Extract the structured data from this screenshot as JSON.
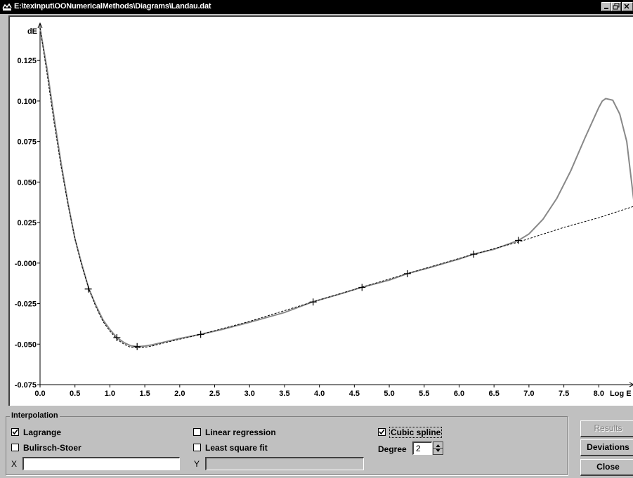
{
  "window": {
    "title": "E:\\texinput\\OONumericalMethods\\Diagrams\\Landau.dat"
  },
  "chart_data": {
    "type": "line",
    "title": "",
    "xlabel": "Log E",
    "ylabel": "dE",
    "xlim": [
      0.0,
      8.5
    ],
    "ylim": [
      -0.075,
      0.145
    ],
    "x_ticks": [
      "0.0",
      "0.5",
      "1.0",
      "1.5",
      "2.0",
      "2.5",
      "3.0",
      "3.5",
      "4.0",
      "4.5",
      "5.0",
      "5.5",
      "6.0",
      "6.5",
      "7.0",
      "7.5",
      "8.0"
    ],
    "y_ticks": [
      "0.125",
      "0.100",
      "0.075",
      "0.050",
      "0.025",
      "-0.000",
      "-0.025",
      "-0.050",
      "-0.075"
    ],
    "grid": false,
    "points": {
      "x": [
        0.69,
        1.1,
        1.39,
        2.3,
        3.91,
        4.61,
        5.26,
        6.21,
        6.85
      ],
      "y": [
        -0.016,
        -0.046,
        -0.0515,
        -0.044,
        -0.024,
        -0.015,
        -0.0065,
        0.0055,
        0.014
      ]
    },
    "series": [
      {
        "style": "solid-gray",
        "color": "#888888",
        "x": [
          0.0,
          0.1,
          0.2,
          0.3,
          0.4,
          0.5,
          0.6,
          0.7,
          0.8,
          0.9,
          1.0,
          1.1,
          1.2,
          1.3,
          1.4,
          1.5,
          1.6,
          1.8,
          2.0,
          2.3,
          2.6,
          3.0,
          3.5,
          3.9,
          4.3,
          4.6,
          5.0,
          5.26,
          5.6,
          6.0,
          6.21,
          6.5,
          6.85,
          7.0,
          7.2,
          7.4,
          7.6,
          7.8,
          8.0,
          8.05,
          8.1,
          8.2,
          8.3,
          8.4,
          8.5
        ],
        "y": [
          0.145,
          0.12,
          0.09,
          0.062,
          0.037,
          0.015,
          -0.001,
          -0.016,
          -0.026,
          -0.035,
          -0.041,
          -0.046,
          -0.049,
          -0.051,
          -0.0515,
          -0.0512,
          -0.0505,
          -0.0485,
          -0.0465,
          -0.044,
          -0.041,
          -0.0365,
          -0.0305,
          -0.024,
          -0.019,
          -0.015,
          -0.0105,
          -0.0065,
          -0.0025,
          0.0025,
          0.0055,
          0.0085,
          0.014,
          0.018,
          0.027,
          0.04,
          0.057,
          0.077,
          0.096,
          0.1,
          0.1015,
          0.1005,
          0.092,
          0.075,
          0.039
        ]
      },
      {
        "style": "dashed-black",
        "color": "#000000",
        "x": [
          0.0,
          0.1,
          0.2,
          0.3,
          0.4,
          0.5,
          0.6,
          0.7,
          0.8,
          0.9,
          1.0,
          1.1,
          1.2,
          1.3,
          1.4,
          1.5,
          1.6,
          1.8,
          2.0,
          2.3,
          3.0,
          3.9,
          4.6,
          5.26,
          6.21,
          6.85,
          7.5,
          8.0,
          8.5
        ],
        "y": [
          0.145,
          0.117,
          0.087,
          0.06,
          0.036,
          0.015,
          -0.002,
          -0.016,
          -0.027,
          -0.036,
          -0.042,
          -0.047,
          -0.05,
          -0.052,
          -0.0522,
          -0.052,
          -0.0512,
          -0.049,
          -0.047,
          -0.044,
          -0.036,
          -0.024,
          -0.015,
          -0.0065,
          0.0055,
          0.013,
          0.022,
          0.028,
          0.035
        ]
      }
    ]
  },
  "panel": {
    "legend": "Interpolation",
    "lagrange": {
      "label": "Lagrange",
      "checked": true
    },
    "bulirsch": {
      "label": "Bulirsch-Stoer",
      "checked": false
    },
    "linreg": {
      "label": "Linear regression",
      "checked": false
    },
    "lsq": {
      "label": "Least square fit",
      "checked": false
    },
    "spline": {
      "label": "Cubic spline",
      "checked": true
    },
    "degree_label": "Degree",
    "degree_value": "2",
    "x_label": "X",
    "x_value": "",
    "y_label": "Y",
    "y_value": ""
  },
  "buttons": {
    "results": "Results",
    "deviations": "Deviations",
    "close": "Close"
  }
}
